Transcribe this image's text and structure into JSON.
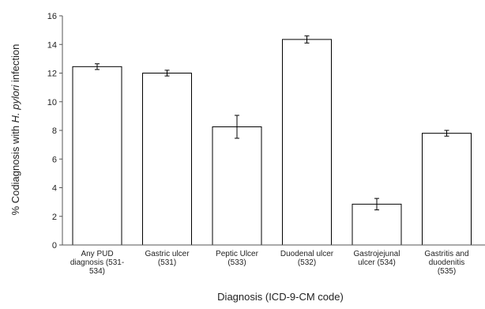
{
  "chart_data": {
    "type": "bar",
    "title": "",
    "xlabel": "Diagnosis (ICD-9-CM code)",
    "ylabel_parts": [
      "% Codiagnosis with ",
      "H. pylori",
      " infection"
    ],
    "ylim": [
      0,
      16
    ],
    "yticks": [
      0,
      2,
      4,
      6,
      8,
      10,
      12,
      14,
      16
    ],
    "grid": false,
    "legend": "none",
    "categories": [
      [
        "Any PUD",
        "diagnosis (531-",
        "534)"
      ],
      [
        "Gastric ulcer",
        "(531)"
      ],
      [
        "Peptic Ulcer",
        "(533)"
      ],
      [
        "Duodenal ulcer",
        "(532)"
      ],
      [
        "Gastrojejunal",
        "ulcer (534)"
      ],
      [
        "Gastritis and",
        "duodenitis",
        "(535)"
      ]
    ],
    "values": [
      12.45,
      12.0,
      8.25,
      14.35,
      2.85,
      7.8
    ],
    "error_lower": [
      12.25,
      11.8,
      7.45,
      14.1,
      2.45,
      7.6
    ],
    "error_upper": [
      12.65,
      12.2,
      9.05,
      14.6,
      3.25,
      8.0
    ],
    "colors": {
      "bar_fill": "#ffffff",
      "bar_stroke": "#000000",
      "axis": "#555555",
      "text": "#222222"
    }
  }
}
